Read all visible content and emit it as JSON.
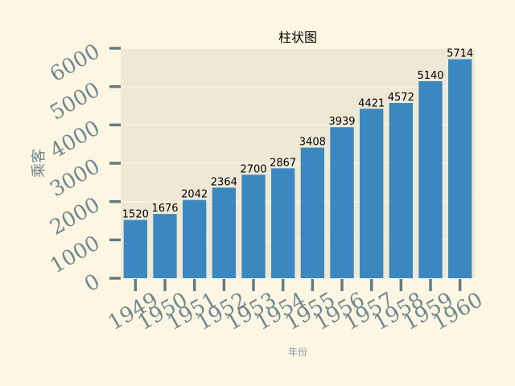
{
  "chart_data": {
    "type": "bar",
    "title": "柱状图",
    "xlabel": "年份",
    "ylabel": "乘客",
    "categories": [
      "1949",
      "1950",
      "1951",
      "1952",
      "1953",
      "1954",
      "1955",
      "1956",
      "1957",
      "1958",
      "1959",
      "1960"
    ],
    "values": [
      1520,
      1676,
      2042,
      2364,
      2700,
      2867,
      3408,
      3939,
      4421,
      4572,
      5140,
      5714
    ],
    "ylim": [
      0,
      6000
    ],
    "yticks": [
      0,
      1000,
      2000,
      3000,
      4000,
      5000,
      6000
    ],
    "grid": true,
    "legend": "none"
  },
  "colors": {
    "background": "#fdf6e3",
    "plot_background": "#eee8d5",
    "bar": "#3a88bf",
    "grid": "#fbf5e6",
    "tick": "#657b83",
    "tick_label": "#708890"
  }
}
